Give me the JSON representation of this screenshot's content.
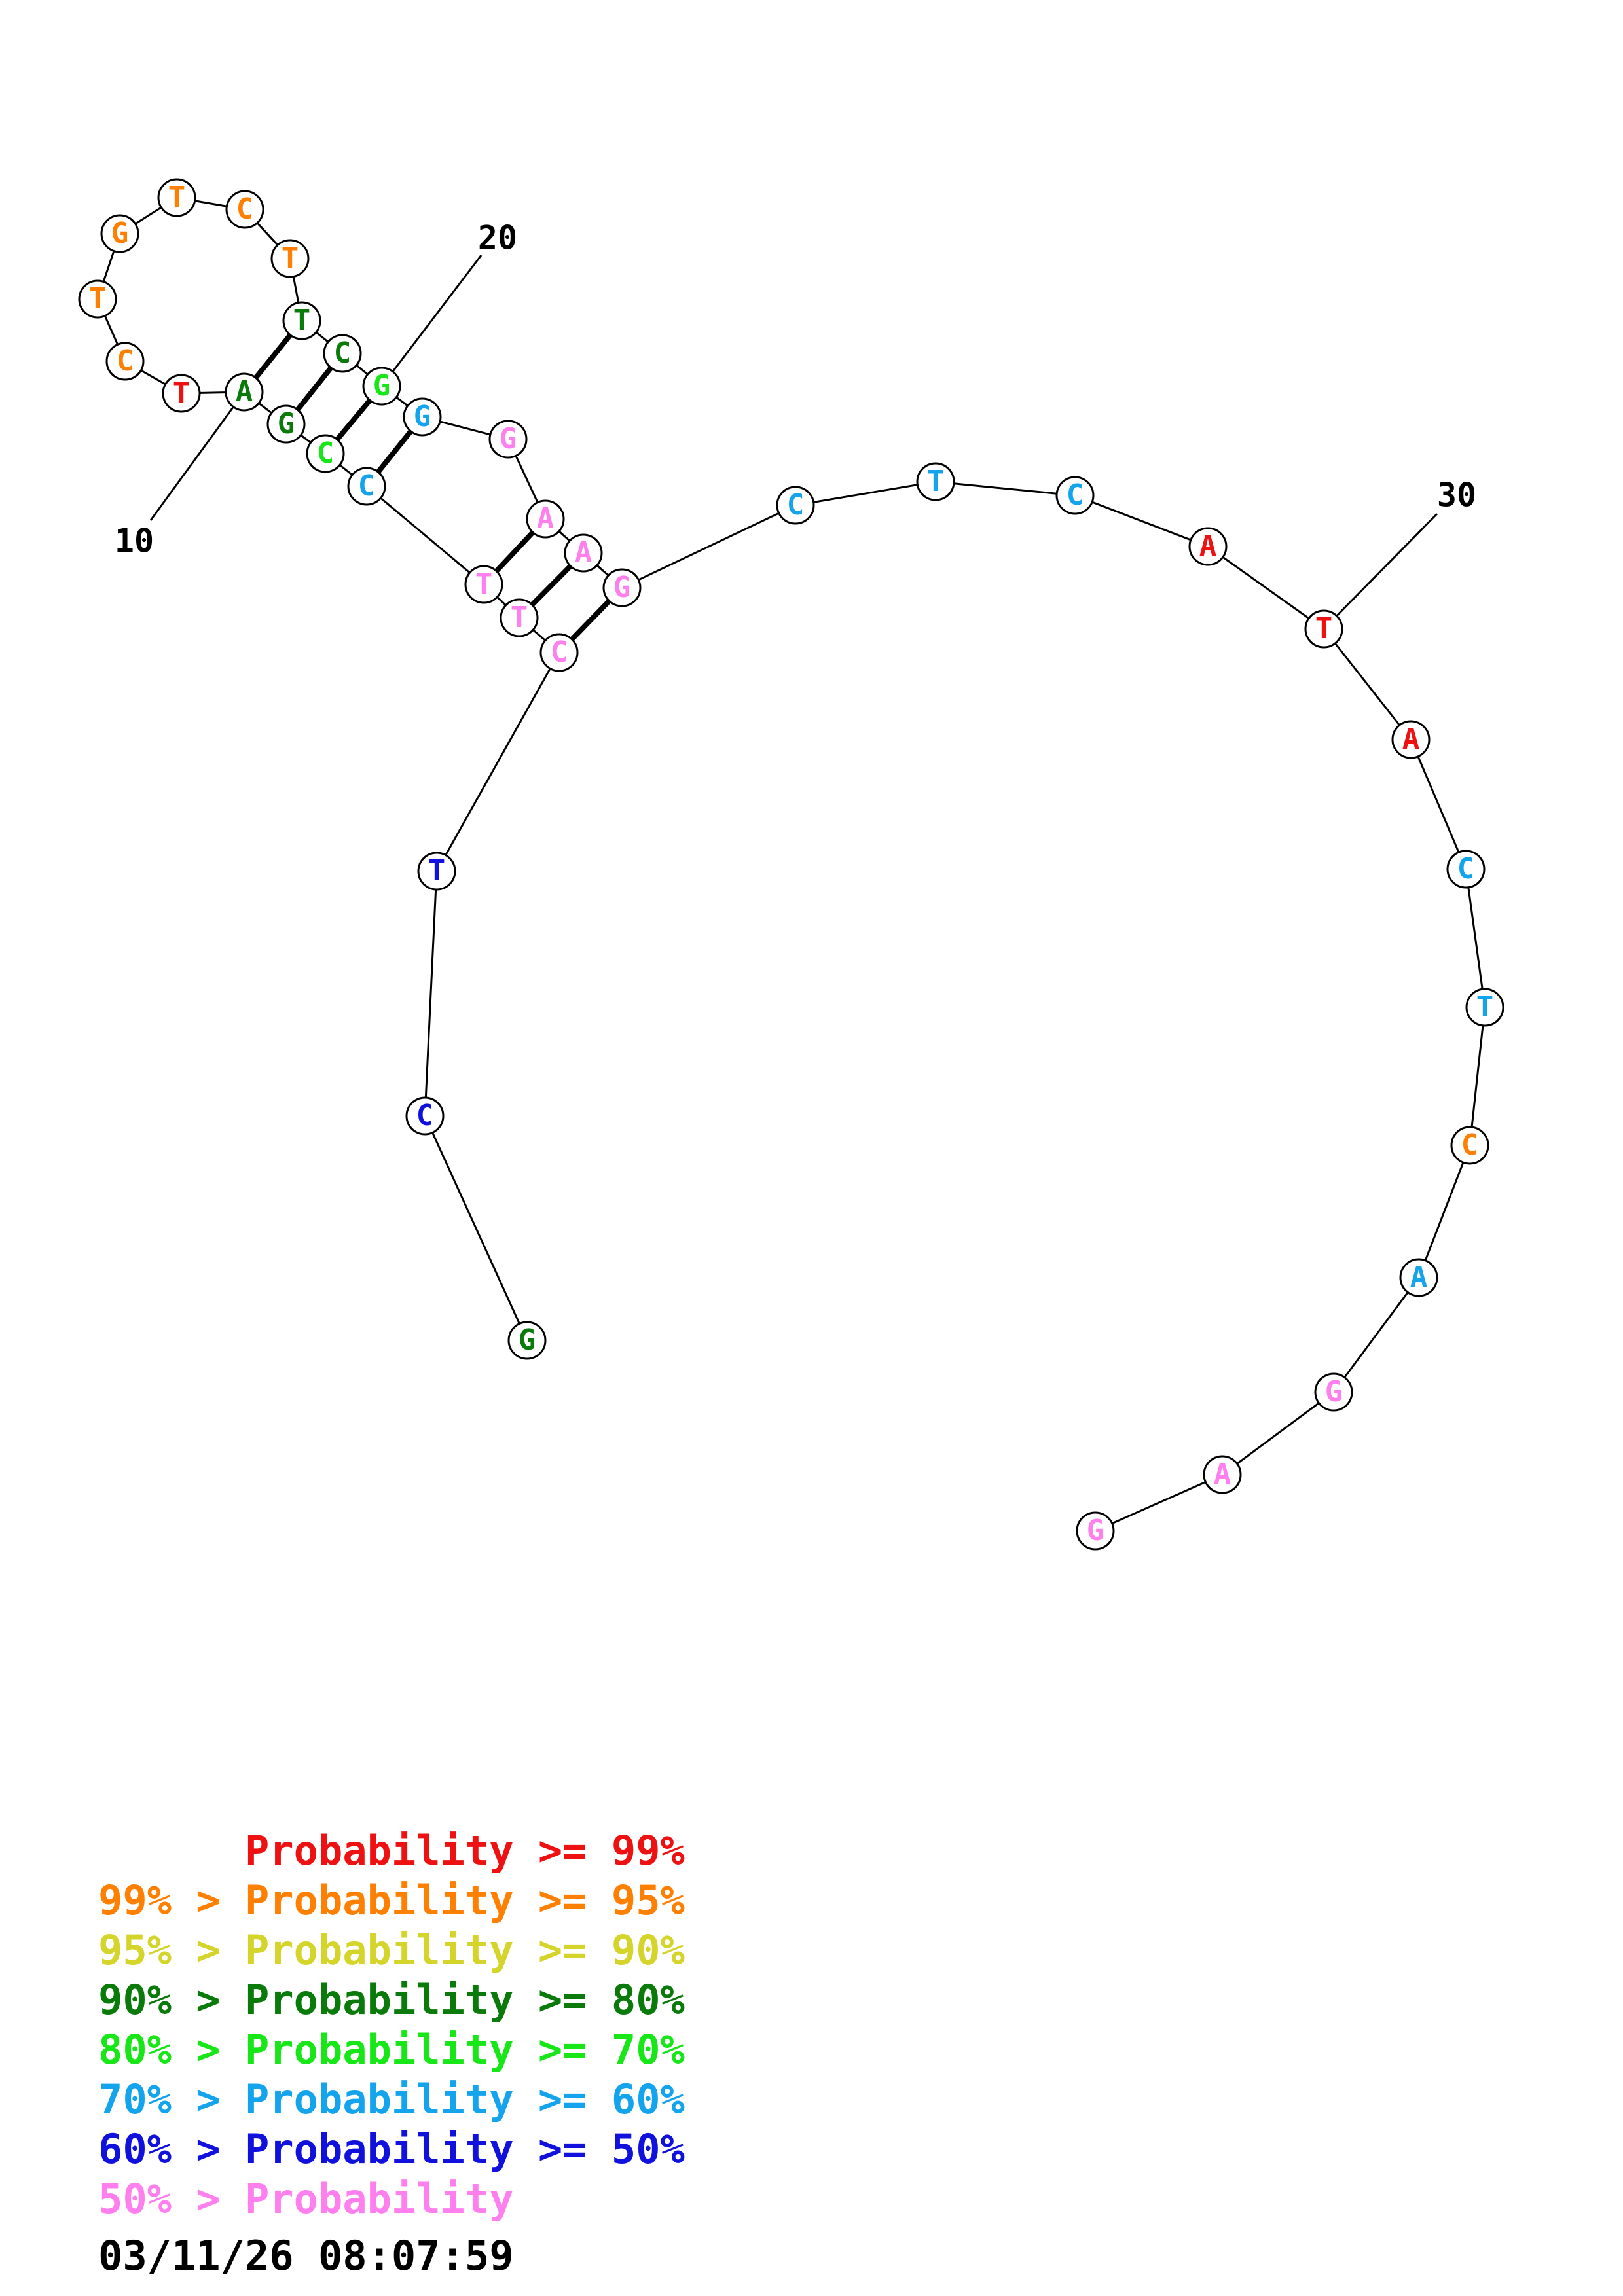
{
  "colors": {
    "ge99": "#ee1111",
    "p95": "#ff7f00",
    "p90": "#d4d42a",
    "p80": "#0a7a0a",
    "p70": "#17e617",
    "p60": "#14a4ee",
    "p50": "#1111dd",
    "lt50": "#ff7fee"
  },
  "sequence": [
    {
      "base": "G",
      "tier": "p80"
    },
    {
      "base": "C",
      "tier": "p50"
    },
    {
      "base": "T",
      "tier": "p50"
    },
    {
      "base": "C",
      "tier": "lt50"
    },
    {
      "base": "T",
      "tier": "lt50"
    },
    {
      "base": "T",
      "tier": "lt50"
    },
    {
      "base": "C",
      "tier": "p60"
    },
    {
      "base": "C",
      "tier": "p70"
    },
    {
      "base": "G",
      "tier": "p80"
    },
    {
      "base": "A",
      "tier": "p80"
    },
    {
      "base": "T",
      "tier": "ge99"
    },
    {
      "base": "C",
      "tier": "p95"
    },
    {
      "base": "T",
      "tier": "p95"
    },
    {
      "base": "G",
      "tier": "p95"
    },
    {
      "base": "T",
      "tier": "p95"
    },
    {
      "base": "C",
      "tier": "p95"
    },
    {
      "base": "T",
      "tier": "p95"
    },
    {
      "base": "T",
      "tier": "p80"
    },
    {
      "base": "C",
      "tier": "p80"
    },
    {
      "base": "G",
      "tier": "p70"
    },
    {
      "base": "G",
      "tier": "p60"
    },
    {
      "base": "G",
      "tier": "lt50"
    },
    {
      "base": "A",
      "tier": "lt50"
    },
    {
      "base": "A",
      "tier": "lt50"
    },
    {
      "base": "G",
      "tier": "lt50"
    },
    {
      "base": "C",
      "tier": "p60"
    },
    {
      "base": "T",
      "tier": "p60"
    },
    {
      "base": "C",
      "tier": "p60"
    },
    {
      "base": "A",
      "tier": "ge99"
    },
    {
      "base": "T",
      "tier": "ge99"
    },
    {
      "base": "A",
      "tier": "ge99"
    },
    {
      "base": "C",
      "tier": "p60"
    },
    {
      "base": "T",
      "tier": "p60"
    },
    {
      "base": "C",
      "tier": "p95"
    },
    {
      "base": "A",
      "tier": "p60"
    },
    {
      "base": "G",
      "tier": "lt50"
    },
    {
      "base": "A",
      "tier": "lt50"
    },
    {
      "base": "G",
      "tier": "lt50"
    }
  ],
  "pairs": [
    [
      4,
      25
    ],
    [
      5,
      24
    ],
    [
      6,
      23
    ],
    [
      7,
      21
    ],
    [
      8,
      20
    ],
    [
      9,
      19
    ],
    [
      10,
      18
    ]
  ],
  "position_labels": [
    {
      "index": 10,
      "text": "10"
    },
    {
      "index": 20,
      "text": "20"
    },
    {
      "index": 30,
      "text": "30"
    }
  ],
  "legend": [
    {
      "prefix": "      ",
      "label": "Probability >= 99%",
      "tier": "ge99"
    },
    {
      "prefix": "99% > ",
      "label": "Probability >= 95%",
      "tier": "p95"
    },
    {
      "prefix": "95% > ",
      "label": "Probability >= 90%",
      "tier": "p90"
    },
    {
      "prefix": "90% > ",
      "label": "Probability >= 80%",
      "tier": "p80"
    },
    {
      "prefix": "80% > ",
      "label": "Probability >= 70%",
      "tier": "p70"
    },
    {
      "prefix": "70% > ",
      "label": "Probability >= 60%",
      "tier": "p60"
    },
    {
      "prefix": "60% > ",
      "label": "Probability >= 50%",
      "tier": "p50"
    },
    {
      "prefix": "50% > ",
      "label": "Probability",
      "tier": "lt50"
    }
  ],
  "timestamp": "03/11/26 08:07:59"
}
